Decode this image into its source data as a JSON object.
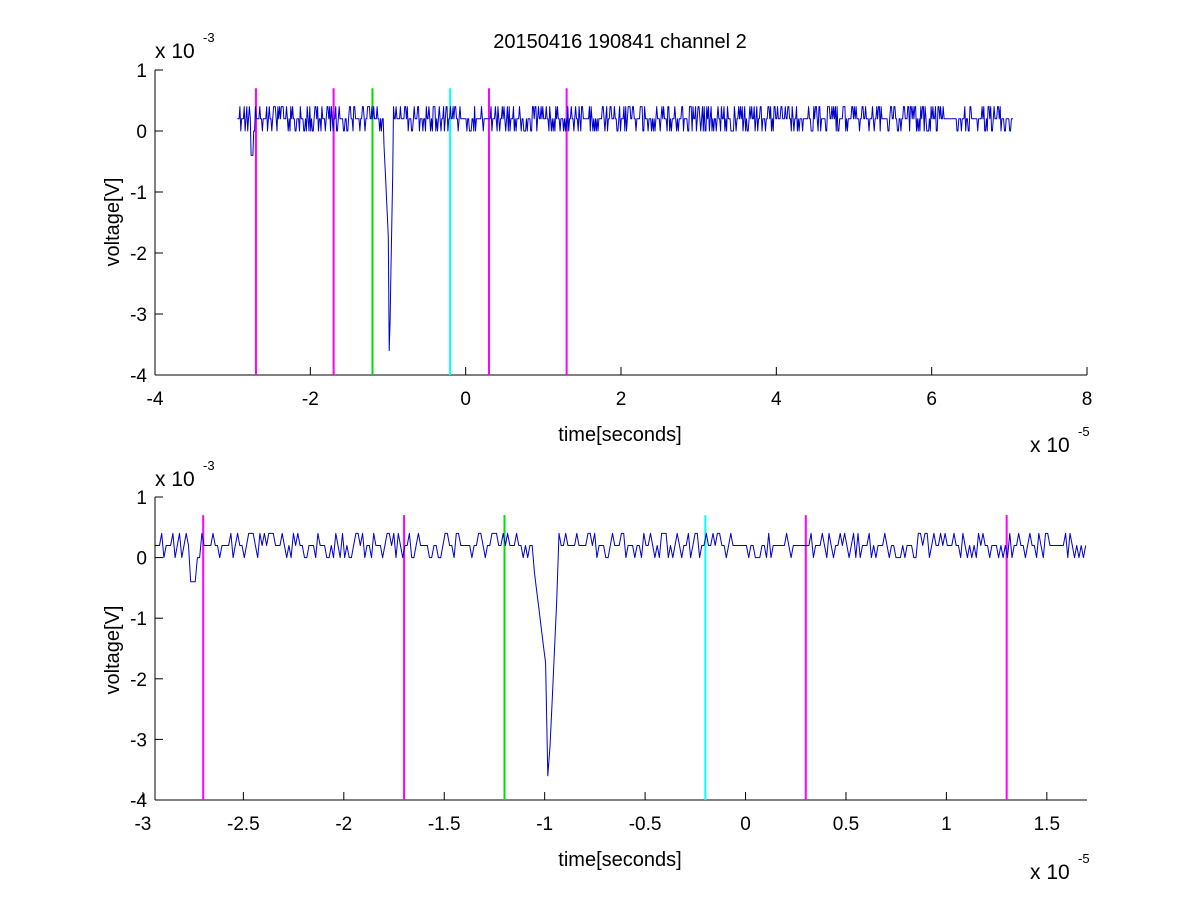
{
  "figure": {
    "title": "20150416 190841 channel 2"
  },
  "colors": {
    "trace": "#0000cc",
    "markers": {
      "magenta": "#ff00ff",
      "green": "#00dd00",
      "cyan": "#00ffff"
    },
    "axis": "#000000",
    "background": "#ffffff"
  },
  "chart_data": [
    {
      "type": "line",
      "title": "20150416 190841 channel 2",
      "xlabel": "time[seconds]",
      "ylabel": "voltage[V]",
      "x_multiplier": {
        "base": "x 10",
        "exponent": "-5"
      },
      "y_multiplier": {
        "base": "x 10",
        "exponent": "-3"
      },
      "xlim": [
        -4,
        8
      ],
      "ylim": [
        -4,
        1
      ],
      "x_ticks": [
        -4,
        -2,
        0,
        2,
        4,
        6,
        8
      ],
      "x_tick_labels": [
        "-4",
        "-2",
        "0",
        "2",
        "4",
        "6",
        "8"
      ],
      "y_ticks": [
        -4,
        -3,
        -2,
        -1,
        0,
        1
      ],
      "y_tick_labels": [
        "-4",
        "-3",
        "-2",
        "-1",
        "0",
        "1"
      ],
      "grid": false,
      "series": [
        {
          "color": "#0000cc",
          "x_range": [
            -2.94,
            7.06
          ],
          "baseline": 0.2,
          "noise_levels": [
            0.0,
            0.2,
            0.4
          ],
          "spike": {
            "x": -0.98,
            "min": -3.6
          }
        }
      ],
      "markers": [
        {
          "x": -2.7,
          "color": "magenta"
        },
        {
          "x": -1.7,
          "color": "magenta"
        },
        {
          "x": -1.2,
          "color": "green"
        },
        {
          "x": -0.2,
          "color": "cyan"
        },
        {
          "x": 0.3,
          "color": "magenta"
        },
        {
          "x": 1.3,
          "color": "magenta"
        }
      ],
      "marker_top": 0.7
    },
    {
      "type": "line",
      "xlabel": "time[seconds]",
      "ylabel": "voltage[V]",
      "x_multiplier": {
        "base": "x 10",
        "exponent": "-5"
      },
      "y_multiplier": {
        "base": "x 10",
        "exponent": "-3"
      },
      "xlim": [
        -2.94,
        1.7
      ],
      "ylim": [
        -4,
        1
      ],
      "x_ticks": [
        -3,
        -2.5,
        -2,
        -1.5,
        -1,
        -0.5,
        0,
        0.5,
        1,
        1.5
      ],
      "x_tick_labels": [
        "-3",
        "-2.5",
        "-2",
        "-1.5",
        "-1",
        "-0.5",
        "0",
        "0.5",
        "1",
        "1.5"
      ],
      "y_ticks": [
        -4,
        -3,
        -2,
        -1,
        0,
        1
      ],
      "y_tick_labels": [
        "-4",
        "-3",
        "-2",
        "-1",
        "0",
        "1"
      ],
      "grid": false,
      "series": [
        {
          "color": "#0000cc",
          "x_range": [
            -2.94,
            1.7
          ],
          "baseline": 0.2,
          "noise_levels": [
            0.0,
            0.2,
            0.4
          ],
          "spike": {
            "x": -0.98,
            "min": -3.6
          }
        }
      ],
      "markers": [
        {
          "x": -2.7,
          "color": "magenta"
        },
        {
          "x": -1.7,
          "color": "magenta"
        },
        {
          "x": -1.2,
          "color": "green"
        },
        {
          "x": -0.2,
          "color": "cyan"
        },
        {
          "x": 0.3,
          "color": "magenta"
        },
        {
          "x": 1.3,
          "color": "magenta"
        }
      ],
      "marker_top": 0.7
    }
  ]
}
